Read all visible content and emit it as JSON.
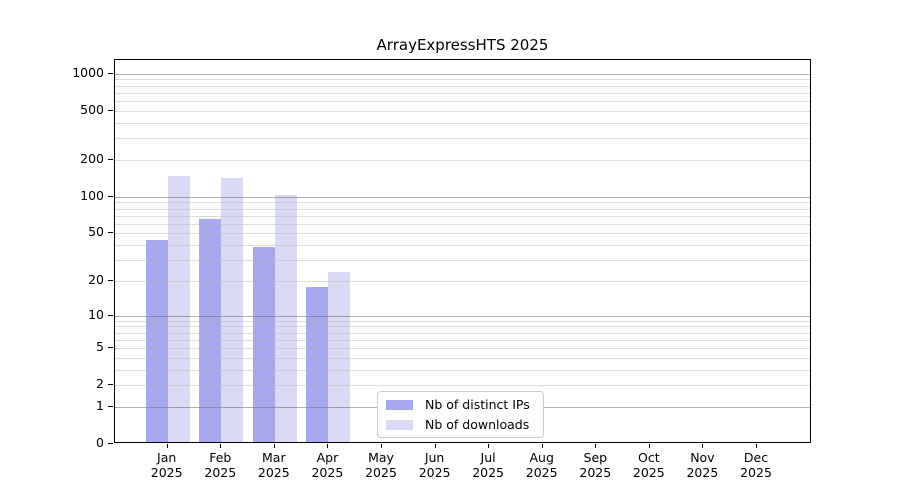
{
  "chart_data": {
    "type": "bar",
    "title": "ArrayExpressHTS 2025",
    "categories": [
      "Jan",
      "Feb",
      "Mar",
      "Apr",
      "May",
      "Jun",
      "Jul",
      "Aug",
      "Sep",
      "Oct",
      "Nov",
      "Dec"
    ],
    "year_label": "2025",
    "series": [
      {
        "name": "Nb of distinct IPs",
        "color": "#a8a8ef",
        "values": [
          42,
          63,
          37,
          17,
          0,
          0,
          0,
          0,
          0,
          0,
          0,
          0
        ]
      },
      {
        "name": "Nb of downloads",
        "color": "#dadaf7",
        "values": [
          142,
          138,
          99,
          23,
          0,
          0,
          0,
          0,
          0,
          0,
          0,
          0
        ]
      }
    ],
    "y_scale": "log1p",
    "y_ticks": [
      0,
      1,
      2,
      5,
      10,
      20,
      50,
      100,
      200,
      500,
      1000
    ],
    "ylim": [
      0,
      1300
    ],
    "grid": true,
    "legend_position": "inside-bottom-center",
    "colors": {
      "grid_major": "#b3b3b3",
      "grid_minor": "#e7e7e7",
      "axis": "#000000",
      "text": "#000000",
      "background": "#ffffff"
    }
  }
}
